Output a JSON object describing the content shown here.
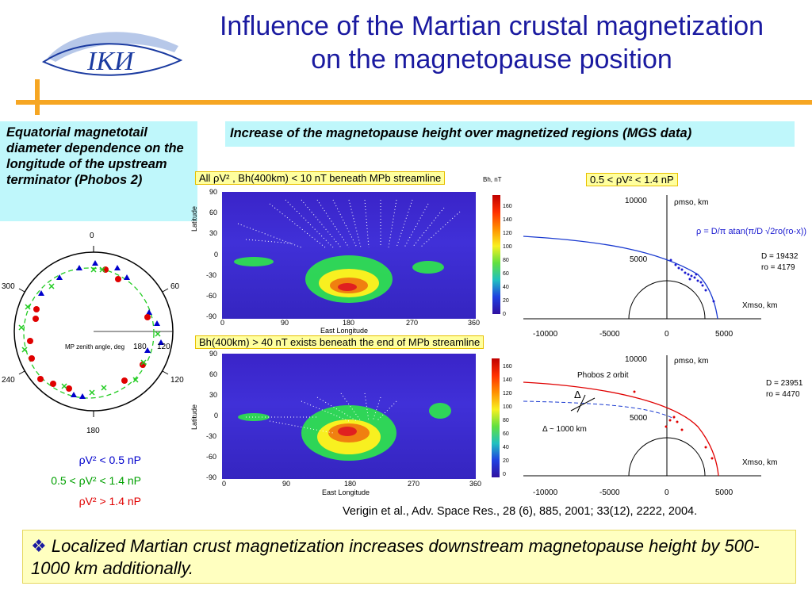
{
  "title": {
    "line1": "Influence of the Martian crustal magnetization",
    "line2": "on the magnetopause position"
  },
  "logo": {
    "text": "IKИ",
    "icon": "iki-logo-icon"
  },
  "left_panel": {
    "caption": "Equatorial magnetotail diameter dependence on the longitude of the upstream terminator (Phobos 2)",
    "polar": {
      "angles": [
        "0",
        "60",
        "120",
        "180",
        "240",
        "300"
      ],
      "center_label": "MP zenith angle,  deg",
      "radial_labels": [
        "180",
        "120"
      ]
    },
    "legend": [
      {
        "text": "ρV² < 0.5 nP",
        "color": "#0000cc"
      },
      {
        "text": "0.5 < ρV² < 1.4 nP",
        "color": "#00a000"
      },
      {
        "text": "ρV² > 1.4 nP",
        "color": "#e00000"
      }
    ]
  },
  "header_right": "Increase of the magnetopause height over magnetized regions (MGS data)",
  "map_top": {
    "label": "All  ρV² , Bh(400km) < 10 nT  beneath MPb streamline",
    "y_axis_title": "Latitude",
    "y_ticks": [
      "90",
      "60",
      "30",
      "0",
      "-30",
      "-60",
      "-90"
    ],
    "x_ticks": [
      "0",
      "90",
      "180",
      "270",
      "360"
    ],
    "x_axis_title": "East Longitude"
  },
  "map_bottom": {
    "label": "Bh(400km) > 40 nT exists beneath the end of MPb streamline",
    "y_axis_title": "Latitude",
    "y_ticks": [
      "90",
      "60",
      "30",
      "0",
      "-30",
      "-60",
      "-90"
    ],
    "x_ticks": [
      "0",
      "90",
      "180",
      "270",
      "360"
    ],
    "x_axis_title": "East Longitude"
  },
  "colorbar": {
    "title": "Bh, nT",
    "ticks": [
      "160",
      "140",
      "120",
      "100",
      "80",
      "60",
      "40",
      "20",
      "0"
    ]
  },
  "plot_top": {
    "label": "0.5 < ρV² < 1.4 nP",
    "y_title": "ρmso,  km",
    "y_ticks": [
      "10000",
      "5000"
    ],
    "x_ticks": [
      "-10000",
      "-5000",
      "0",
      "5000"
    ],
    "x_title": "Xmso,  km",
    "formula": "ρ = D/π atan(π/D √2ro(ro-x))",
    "params": [
      "D = 19432",
      "ro = 4179"
    ]
  },
  "plot_bottom": {
    "y_title": "ρmso,  km",
    "y_ticks": [
      "10000",
      "5000"
    ],
    "x_ticks": [
      "-10000",
      "-5000",
      "0",
      "5000"
    ],
    "x_title": "Xmso,  km",
    "orbit_label": "Phobos 2  orbit",
    "delta_symbol": "Δ",
    "delta_label": "Δ ~ 1000 km",
    "params": [
      "D = 23951",
      "ro = 4470"
    ]
  },
  "reference": "Verigin et al., Adv. Space Res., 28 (6), 885, 2001;         33(12), 2222, 2004.",
  "conclusion": {
    "bullet": "❖",
    "text": "Localized Martian crust magnetization increases downstream magnetopause height by 500-1000 km additionally."
  }
}
